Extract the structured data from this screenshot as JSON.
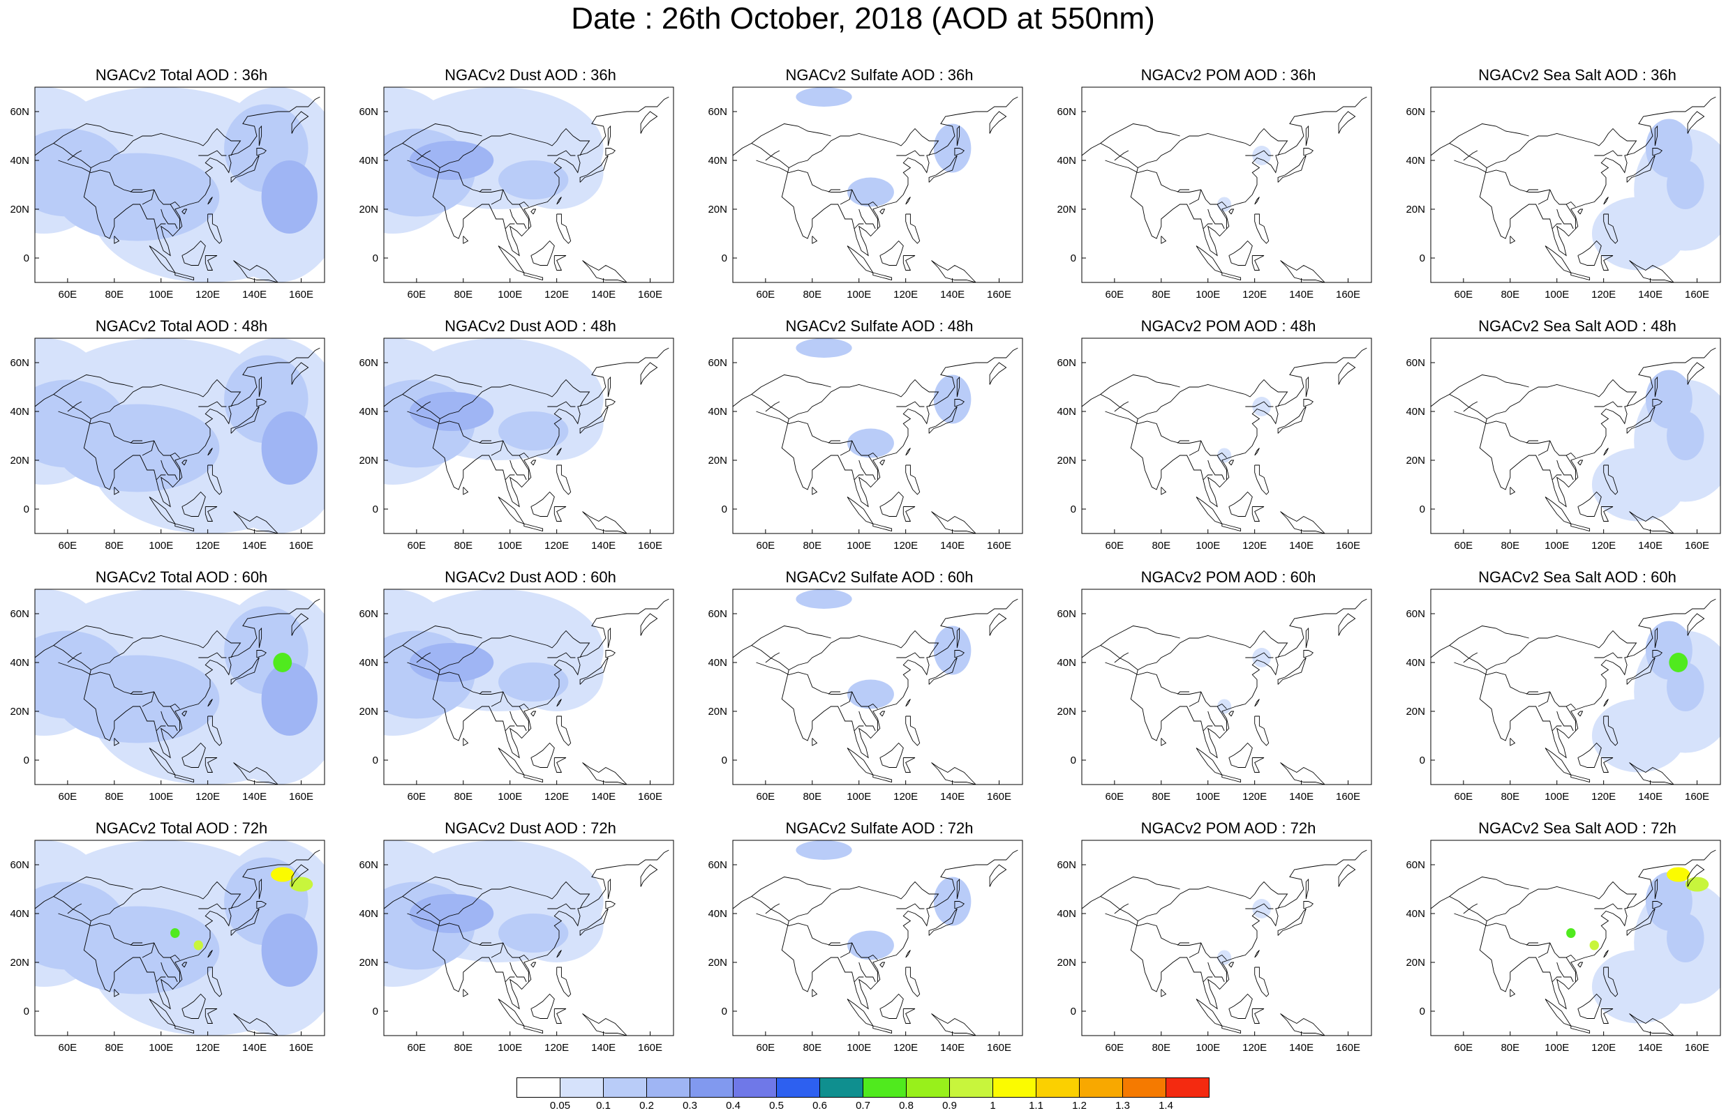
{
  "title": "Date : 26th October, 2018 (AOD at 550nm)",
  "lon_ticks": [
    "60E",
    "80E",
    "100E",
    "120E",
    "140E",
    "160E"
  ],
  "lat_ticks": [
    "60N",
    "40N",
    "20N",
    "0"
  ],
  "panels": [
    [
      "NGACv2 Total AOD : 36h",
      "NGACv2 Dust AOD : 36h",
      "NGACv2 Sulfate AOD : 36h",
      "NGACv2 POM AOD : 36h",
      "NGACv2 Sea Salt AOD : 36h"
    ],
    [
      "NGACv2 Total AOD : 48h",
      "NGACv2 Dust AOD : 48h",
      "NGACv2 Sulfate AOD : 48h",
      "NGACv2 POM AOD : 48h",
      "NGACv2 Sea Salt AOD : 48h"
    ],
    [
      "NGACv2 Total AOD : 60h",
      "NGACv2 Dust AOD : 60h",
      "NGACv2 Sulfate AOD : 60h",
      "NGACv2 POM AOD : 60h",
      "NGACv2 Sea Salt AOD : 60h"
    ],
    [
      "NGACv2 Total AOD : 72h",
      "NGACv2 Dust AOD : 72h",
      "NGACv2 Sulfate AOD : 72h",
      "NGACv2 POM AOD : 72h",
      "NGACv2 Sea Salt  AOD : 72h"
    ]
  ],
  "colorbar": {
    "labels": [
      "0.05",
      "0.1",
      "0.2",
      "0.3",
      "0.4",
      "0.5",
      "0.6",
      "0.7",
      "0.8",
      "0.9",
      "1",
      "1.1",
      "1.2",
      "1.3",
      "1.4"
    ],
    "colors": [
      "#ffffff",
      "#d6e2fb",
      "#b9ccf8",
      "#9fb5f4",
      "#8199ef",
      "#6f78e8",
      "#2d60f0",
      "#0f8f8f",
      "#50ea1e",
      "#98f01b",
      "#c8f53c",
      "#fbfb00",
      "#fbd000",
      "#f8a800",
      "#f57a00",
      "#f42a10"
    ]
  }
}
